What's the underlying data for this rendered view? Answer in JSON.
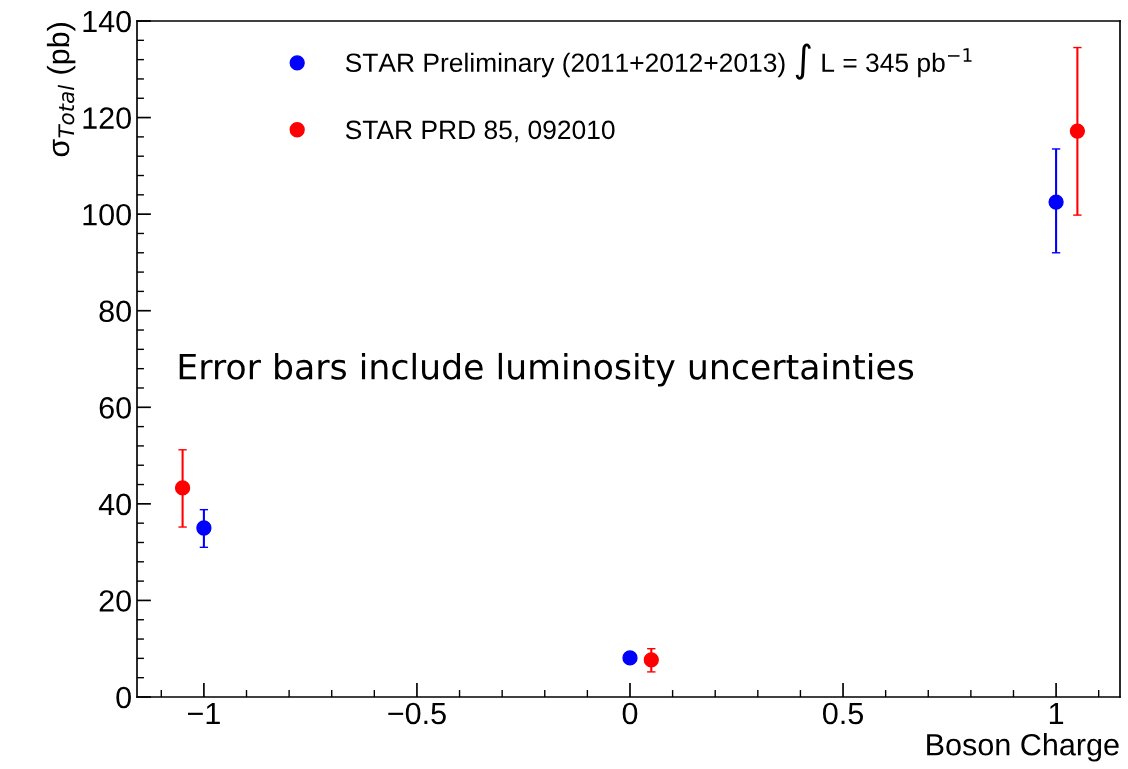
{
  "chart_data": {
    "type": "scatter",
    "xlabel": "Boson Charge",
    "ylabel": "σ$_{Total}$ (pb)",
    "xlim": [
      -1.157,
      1.15
    ],
    "ylim": [
      0,
      140
    ],
    "xticks": [
      {
        "value": -1,
        "label": "−1"
      },
      {
        "value": -0.5,
        "label": "−0.5"
      },
      0,
      0.5,
      1
    ],
    "yticks": [
      0,
      20,
      40,
      60,
      80,
      100,
      120,
      140
    ],
    "marker": "circle",
    "grid": false,
    "legend": "top",
    "annotations": [
      "Error bars include luminosity uncertainties"
    ],
    "series": [
      {
        "name": "STAR Preliminary (2011+2012+2013) ∫ L = 345 pb$^{−1}$",
        "color": "#0000ff",
        "x": [
          -1,
          0,
          1
        ],
        "values": [
          35,
          8.1,
          102.5
        ],
        "errors": [
          [
            31,
            38.8
          ],
          null,
          [
            92,
            113.5
          ]
        ]
      },
      {
        "name": "STAR PRD 85, 092010",
        "color": "#ff0000",
        "x": [
          -1.05,
          0.05,
          1.05
        ],
        "values": [
          43.3,
          7.7,
          117.2
        ],
        "errors": [
          [
            35.2,
            51.2
          ],
          [
            5.2,
            10
          ],
          [
            99.8,
            134.5
          ]
        ]
      }
    ]
  }
}
